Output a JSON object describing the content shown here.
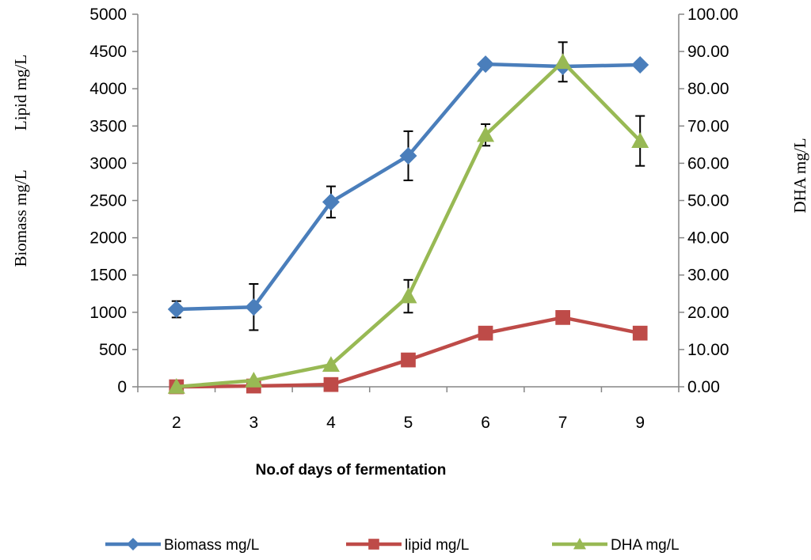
{
  "chart_data": {
    "type": "line",
    "categories": [
      "2",
      "3",
      "4",
      "5",
      "6",
      "7",
      "9"
    ],
    "xlabel": "No.of days of fermentation",
    "ylabel_left_top": "Lipid mg/L",
    "ylabel_left_bottom": "Biomass mg/L",
    "ylabel_right": "DHA mg/L",
    "ylim_left": [
      0,
      5000
    ],
    "ylim_right": [
      0,
      100
    ],
    "yticks_left": [
      "0",
      "500",
      "1000",
      "1500",
      "2000",
      "2500",
      "3000",
      "3500",
      "4000",
      "4500",
      "5000"
    ],
    "yticks_right": [
      "0.00",
      "10.00",
      "20.00",
      "30.00",
      "40.00",
      "50.00",
      "60.00",
      "70.00",
      "80.00",
      "90.00",
      "100.00"
    ],
    "grid": false,
    "legend_position": "bottom",
    "series": [
      {
        "name": "Biomass mg/L",
        "axis": "left",
        "color": "#4a7ebb",
        "marker": "diamond",
        "values": [
          1040,
          1070,
          2480,
          3100,
          4330,
          4300,
          4320
        ],
        "error": [
          110,
          310,
          210,
          330,
          0,
          0,
          0
        ]
      },
      {
        "name": "lipid  mg/L",
        "axis": "left",
        "color": "#be4b48",
        "marker": "square",
        "values": [
          0,
          10,
          30,
          360,
          720,
          930,
          720
        ],
        "error": [
          0,
          0,
          0,
          0,
          0,
          0,
          0
        ]
      },
      {
        "name": "DHA mg/L",
        "axis": "right",
        "color": "#98b954",
        "marker": "triangle",
        "values": [
          0.0,
          1.7,
          5.9,
          24.3,
          67.6,
          87.2,
          66.0
        ],
        "error": [
          0,
          0,
          0,
          4.4,
          2.9,
          5.3,
          6.7
        ]
      }
    ]
  }
}
